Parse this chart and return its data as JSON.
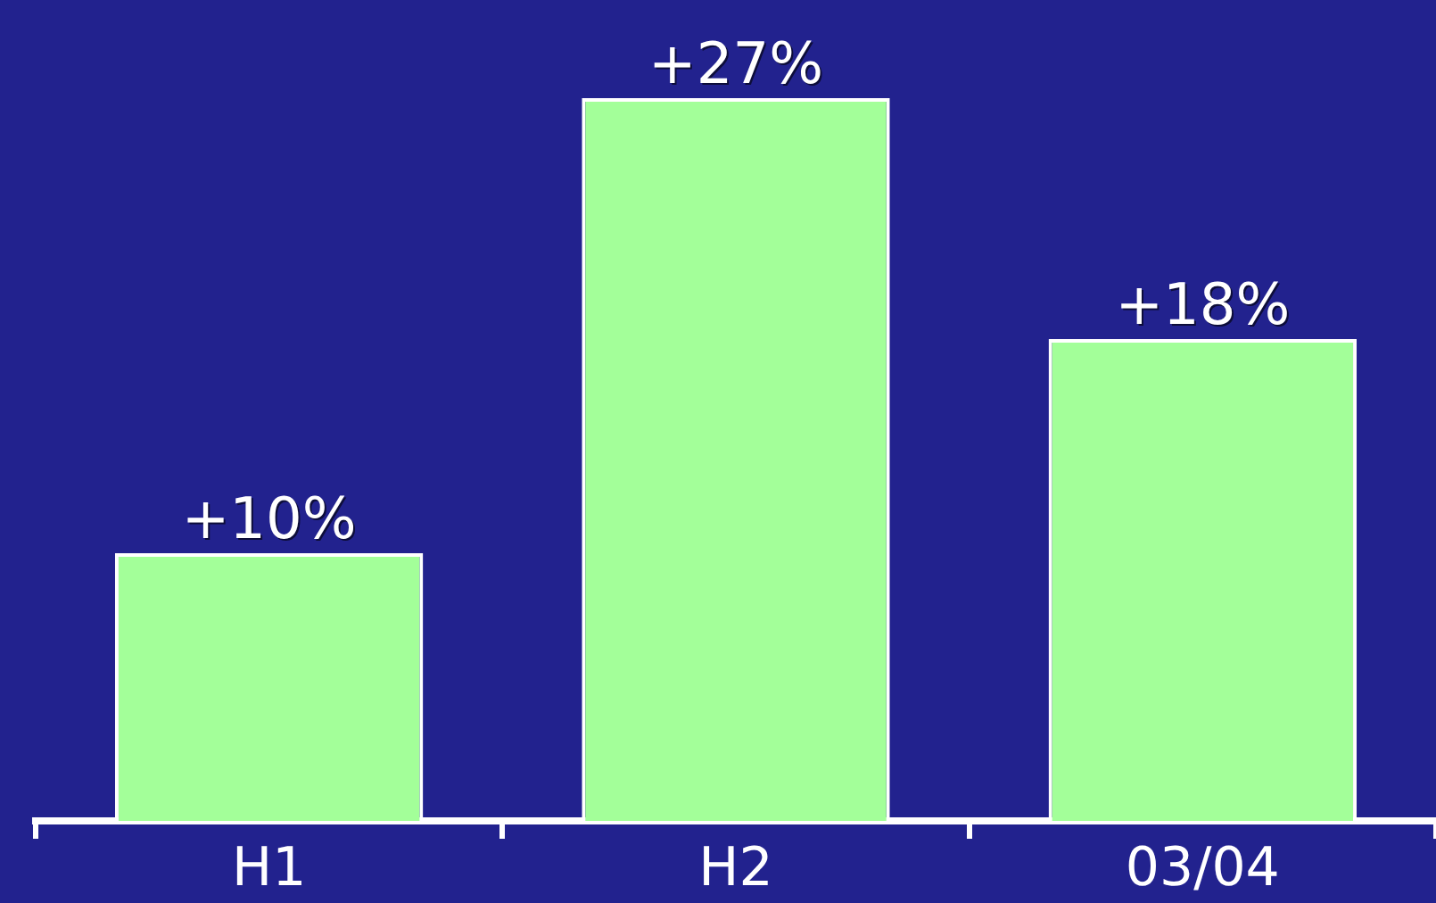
{
  "chart_data": {
    "type": "bar",
    "categories": [
      "H1",
      "H2",
      "03/04"
    ],
    "values": [
      10,
      27,
      18
    ],
    "color": "#a3ff99",
    "value_labels": [
      "+10%",
      "+27%",
      "+18%"
    ],
    "grid": false,
    "legend": false,
    "tick_labels": "x"
  }
}
